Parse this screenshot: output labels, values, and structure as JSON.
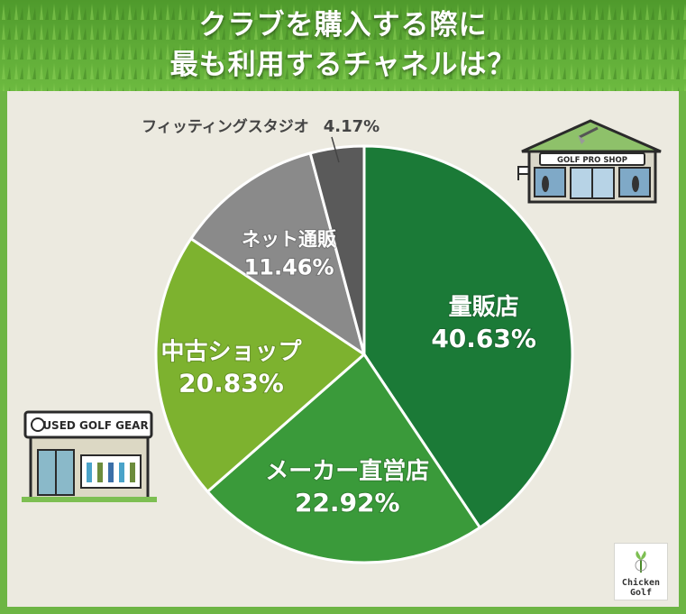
{
  "header": {
    "title_line1": "クラブを購入する際に",
    "title_line2": "最も利用するチャネルは？"
  },
  "chart_data": {
    "type": "pie",
    "title": "クラブを購入する際に最も利用するチャネルは？",
    "unit": "%",
    "slices": [
      {
        "label": "量販店",
        "value": 40.63,
        "value_text": "40.63%",
        "color": "#1b7a37"
      },
      {
        "label": "メーカー直営店",
        "value": 22.92,
        "value_text": "22.92%",
        "color": "#3a9a3a"
      },
      {
        "label": "中古ショップ",
        "value": 20.83,
        "value_text": "20.83%",
        "color": "#7db22f"
      },
      {
        "label": "ネット通販",
        "value": 11.46,
        "value_text": "11.46%",
        "color": "#8a8a8a"
      },
      {
        "label": "フィッティングスタジオ",
        "value": 4.17,
        "value_text": "4.17%",
        "color": "#5a5a5a"
      }
    ]
  },
  "illustrations": {
    "pro_shop_sign": "GOLF PRO SHOP",
    "used_shop_sign": "USED GOLF GEAR"
  },
  "logo": {
    "line1": "Chicken",
    "line2": "Golf"
  },
  "colors": {
    "background": "#eceae0",
    "grass": "#6db544",
    "title_text": "#ffffff"
  }
}
